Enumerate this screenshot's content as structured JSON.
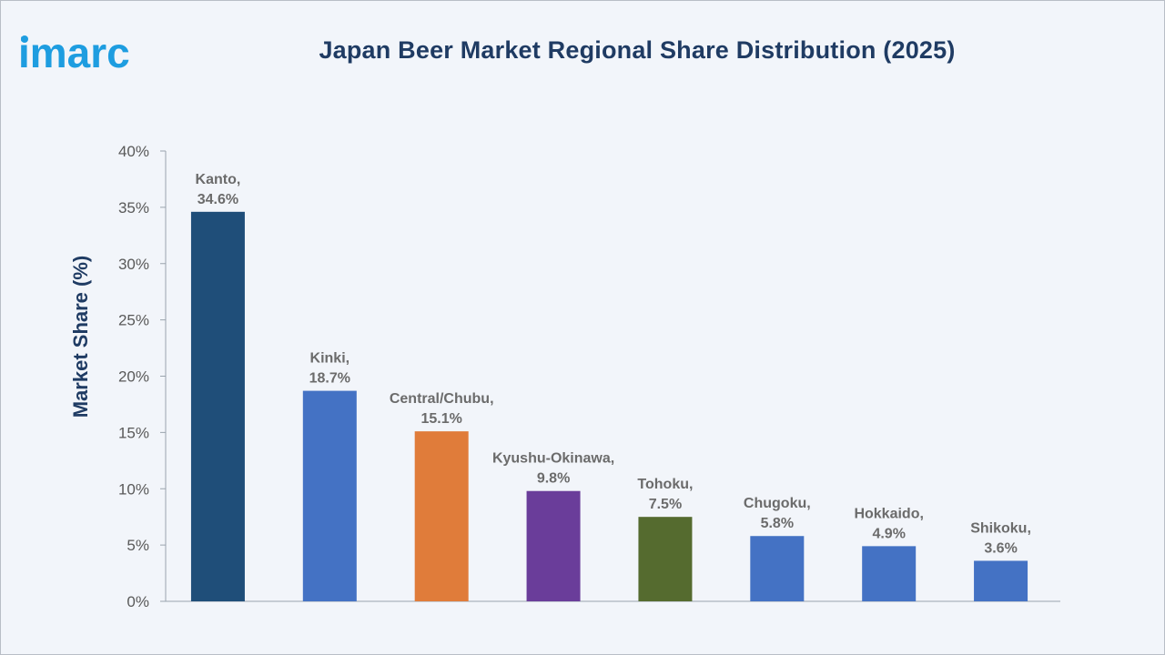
{
  "brand": {
    "logo_text": "imarc",
    "logo_color": "#1e9de0"
  },
  "chart_data": {
    "type": "bar",
    "title": "Japan Beer Market Regional Share Distribution (2025)",
    "ylabel": "Market Share (%)",
    "xlabel": "",
    "ylim": [
      0,
      40
    ],
    "yticks": [
      0,
      5,
      10,
      15,
      20,
      25,
      30,
      35,
      40
    ],
    "ytick_format": "{v}%",
    "grid": false,
    "categories": [
      "Kanto",
      "Kinki",
      "Central/Chubu",
      "Kyushu-Okinawa",
      "Tohoku",
      "Chugoku",
      "Hokkaido",
      "Shikoku"
    ],
    "values": [
      34.6,
      18.7,
      15.1,
      9.8,
      7.5,
      5.8,
      4.9,
      3.6
    ],
    "value_labels": [
      "34.6%",
      "18.7%",
      "15.1%",
      "9.8%",
      "7.5%",
      "5.8%",
      "4.9%",
      "3.6%"
    ],
    "category_labels": [
      "Kanto,",
      "Kinki,",
      "Central/Chubu,",
      "Kyushu-Okinawa,",
      "Tohoku,",
      "Chugoku,",
      "Hokkaido,",
      "Shikoku,"
    ],
    "colors": [
      "#1f4e79",
      "#4472c4",
      "#e07c3a",
      "#6a3d9a",
      "#556b2f",
      "#4472c4",
      "#4472c4",
      "#4472c4"
    ]
  }
}
